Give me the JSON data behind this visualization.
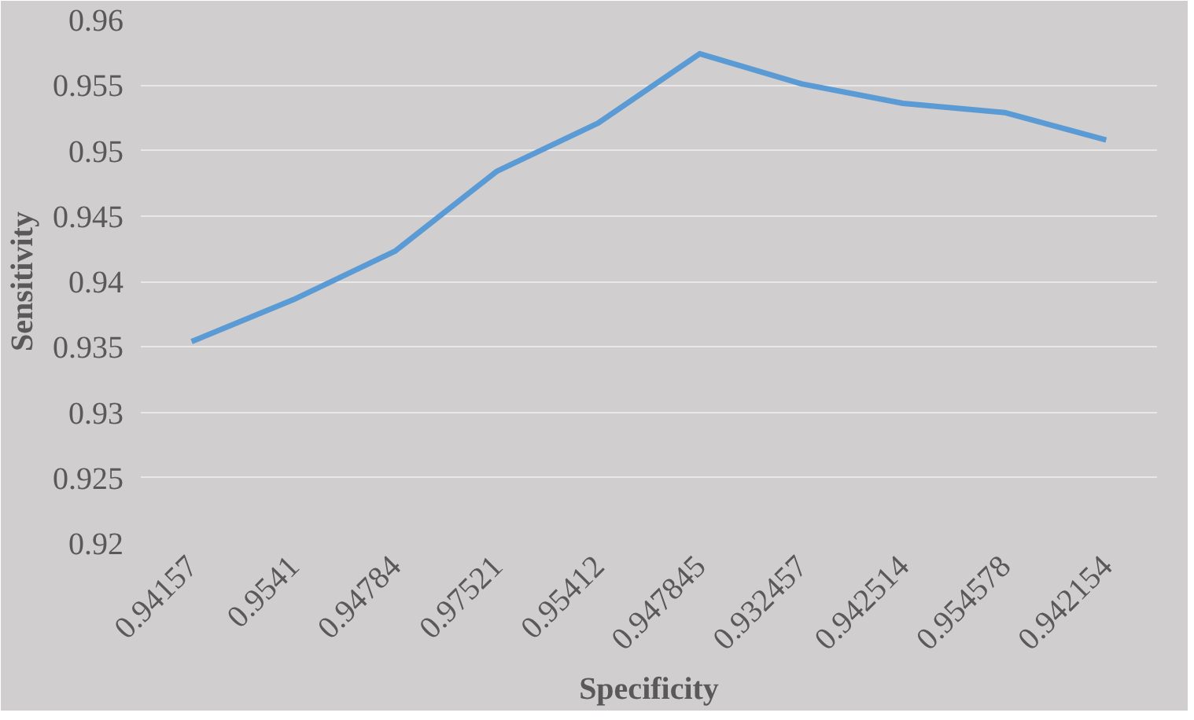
{
  "chart_data": {
    "type": "line",
    "xlabel": "Specificity",
    "ylabel": "Sensitivity",
    "categories": [
      "0.94157",
      "0.9541",
      "0.94784",
      "0.97521",
      "0.95412",
      "0.947845",
      "0.932457",
      "0.942514",
      "0.954578",
      "0.942154"
    ],
    "series": [
      {
        "color": "#5b9bd5",
        "values": [
          0.9354,
          0.9386,
          0.9423,
          0.9484,
          0.9521,
          0.9574,
          0.9551,
          0.9536,
          0.9529,
          0.9508
        ]
      }
    ],
    "ylim": [
      0.92,
      0.96
    ],
    "yticks": [
      0.92,
      0.925,
      0.93,
      0.935,
      0.94,
      0.945,
      0.95,
      0.955,
      0.96
    ],
    "grid": "y",
    "marker": "none",
    "line_style": "solid"
  }
}
